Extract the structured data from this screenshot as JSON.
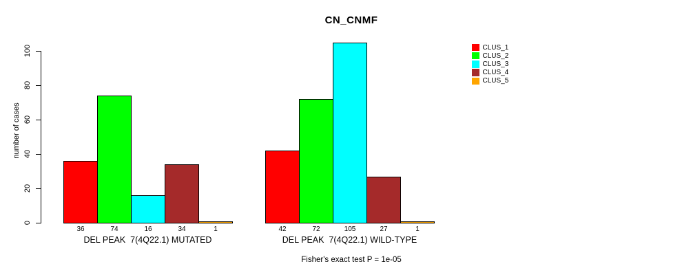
{
  "title": "CN_CNMF",
  "chart_data": {
    "type": "bar",
    "title": "CN_CNMF",
    "xlabel": "",
    "ylabel": "number of cases",
    "ylim": [
      0,
      100
    ],
    "yticks": [
      0,
      20,
      40,
      60,
      80,
      100
    ],
    "grid": false,
    "legend_position": "right",
    "annotation": "Fisher's exact test P = 1e-05",
    "series_names": [
      "CLUS_1",
      "CLUS_2",
      "CLUS_3",
      "CLUS_4",
      "CLUS_5"
    ],
    "series_colors": [
      "#FF0000",
      "#00FF00",
      "#00FFFF",
      "#A52A2A",
      "#FFA500"
    ],
    "groups": [
      {
        "key": "mutated",
        "label": "DEL PEAK  7(4Q22.1) MUTATED",
        "values": [
          36,
          74,
          16,
          34,
          1
        ]
      },
      {
        "key": "wild-type",
        "label": "DEL PEAK  7(4Q22.1) WILD-TYPE",
        "values": [
          42,
          72,
          105,
          27,
          1
        ]
      }
    ]
  },
  "legend": {
    "items": [
      {
        "label": "CLUS_1",
        "color": "#FF0000"
      },
      {
        "label": "CLUS_2",
        "color": "#00FF00"
      },
      {
        "label": "CLUS_3",
        "color": "#00FFFF"
      },
      {
        "label": "CLUS_4",
        "color": "#A52A2A"
      },
      {
        "label": "CLUS_5",
        "color": "#FFA500"
      }
    ]
  }
}
